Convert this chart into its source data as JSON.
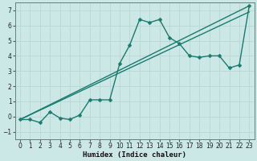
{
  "xlabel": "Humidex (Indice chaleur)",
  "bg_color": "#cce8e6",
  "grid_color": "#b8d8d5",
  "line_color": "#1a7a6e",
  "xlim": [
    -0.5,
    23.5
  ],
  "ylim": [
    -1.5,
    7.5
  ],
  "xticks": [
    0,
    1,
    2,
    3,
    4,
    5,
    6,
    7,
    8,
    9,
    10,
    11,
    12,
    13,
    14,
    15,
    16,
    17,
    18,
    19,
    20,
    21,
    22,
    23
  ],
  "yticks": [
    -1,
    0,
    1,
    2,
    3,
    4,
    5,
    6,
    7
  ],
  "curve1_x": [
    0,
    1,
    2,
    3,
    4,
    5,
    6,
    7,
    8,
    9,
    10,
    11,
    12,
    13,
    14,
    15,
    16,
    17,
    18,
    19,
    20,
    21,
    22,
    23
  ],
  "curve1_y": [
    -0.2,
    -0.2,
    -0.4,
    0.3,
    -0.1,
    -0.2,
    0.1,
    1.1,
    1.1,
    1.1,
    3.5,
    4.7,
    6.4,
    6.2,
    6.4,
    5.2,
    4.8,
    4.0,
    3.9,
    4.0,
    4.0,
    3.2,
    3.4,
    7.3
  ],
  "curve2_x": [
    0,
    23
  ],
  "curve2_y": [
    -0.2,
    7.3
  ],
  "curve3_x": [
    0,
    23
  ],
  "curve3_y": [
    -0.2,
    6.9
  ],
  "marker_size": 2.5,
  "linewidth": 1.0,
  "tick_fontsize": 5.5,
  "label_fontsize": 6.5
}
